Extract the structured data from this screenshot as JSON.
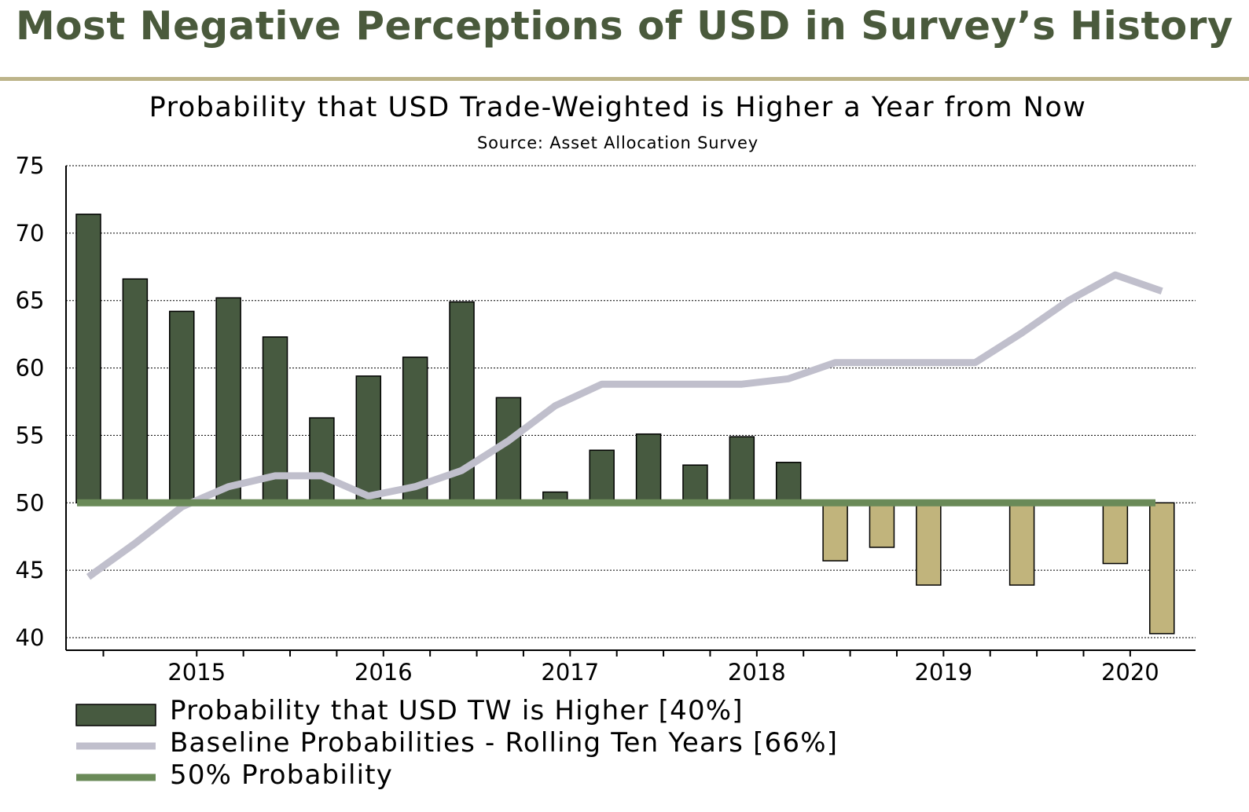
{
  "header": {
    "title": "Most Negative Perceptions of USD in Survey’s History"
  },
  "colors": {
    "title": "#4a5a3c",
    "rule": "#bdb48a",
    "bar_positive": "#475a40",
    "bar_negative": "#c1b47c",
    "baseline_line": "#c0bfcc",
    "fifty_line": "#6a8a58"
  },
  "chart_data": {
    "type": "bar",
    "title": "Probability that USD Trade-Weighted is Higher a Year from Now",
    "subtitle": "Source: Asset Allocation Survey",
    "xlabel": "",
    "ylabel": "",
    "ylim": [
      40,
      75
    ],
    "yticks": [
      75,
      70,
      65,
      60,
      55,
      50,
      45,
      40
    ],
    "grid": true,
    "bar_base": 50,
    "x_range": [
      2014.3,
      2020.35
    ],
    "x_tick_labels": [
      {
        "label": "2015",
        "x": 2015.0
      },
      {
        "label": "2016",
        "x": 2016.0
      },
      {
        "label": "2017",
        "x": 2017.0
      },
      {
        "label": "2018",
        "x": 2018.0
      },
      {
        "label": "2019",
        "x": 2019.0
      },
      {
        "label": "2020",
        "x": 2020.0
      }
    ],
    "minor_ticks": [
      2014.5,
      2015.0,
      2015.25,
      2015.5,
      2015.75,
      2016.0,
      2016.25,
      2016.5,
      2016.75,
      2017.0,
      2017.25,
      2017.5,
      2017.75,
      2018.0,
      2018.25,
      2018.5,
      2018.75,
      2019.0,
      2019.25,
      2019.5,
      2019.75,
      2020.0
    ],
    "series": [
      {
        "name": "Probability that USD TW is Higher  [40%]",
        "kind": "bar",
        "x": [
          2014.42,
          2014.67,
          2014.92,
          2015.17,
          2015.42,
          2015.67,
          2015.92,
          2016.17,
          2016.42,
          2016.67,
          2016.92,
          2017.17,
          2017.42,
          2017.67,
          2017.92,
          2018.17,
          2018.42,
          2018.67,
          2018.92,
          2019.17,
          2019.42,
          2019.67,
          2019.92,
          2020.17
        ],
        "values": [
          71.4,
          66.6,
          64.2,
          65.2,
          62.3,
          56.3,
          59.4,
          60.8,
          64.9,
          57.8,
          50.8,
          53.9,
          55.1,
          52.8,
          54.9,
          53.0,
          45.7,
          46.7,
          43.9,
          50.0,
          43.9,
          49.8,
          45.5,
          40.3
        ]
      },
      {
        "name": "Baseline Probabilities - Rolling Ten Years [66%]",
        "kind": "line",
        "x": [
          2014.42,
          2014.67,
          2014.92,
          2015.17,
          2015.42,
          2015.67,
          2015.92,
          2016.17,
          2016.42,
          2016.67,
          2016.92,
          2017.17,
          2017.42,
          2017.67,
          2017.92,
          2018.17,
          2018.42,
          2018.67,
          2018.92,
          2019.17,
          2019.42,
          2019.67,
          2019.92,
          2020.17
        ],
        "values": [
          44.5,
          47.0,
          49.7,
          51.2,
          52.0,
          52.0,
          50.5,
          51.2,
          52.4,
          54.6,
          57.2,
          58.8,
          58.8,
          58.8,
          58.8,
          59.2,
          60.4,
          60.4,
          60.4,
          60.4,
          62.6,
          65.0,
          66.9,
          65.7
        ]
      },
      {
        "name": "50% Probability",
        "kind": "line",
        "x": [
          2014.42,
          2020.17
        ],
        "values": [
          50,
          50
        ]
      }
    ],
    "legend": {
      "position": "bottom-left",
      "entries": [
        "Probability that USD TW is Higher  [40%]",
        "Baseline Probabilities - Rolling Ten Years [66%]",
        "50% Probability"
      ]
    }
  }
}
